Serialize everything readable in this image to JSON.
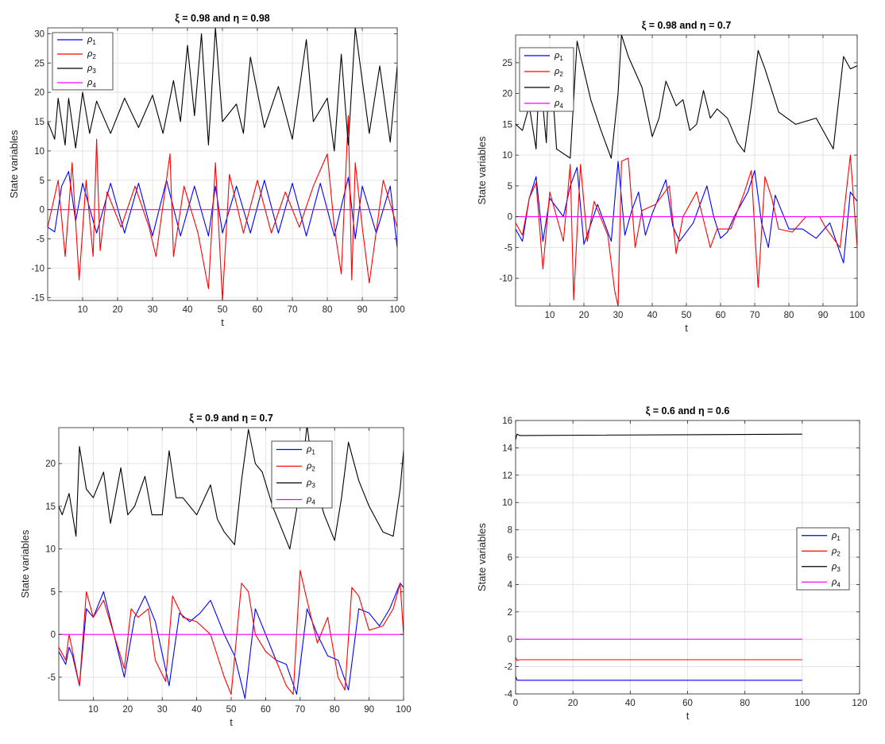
{
  "chart_data": [
    {
      "type": "line",
      "title": "ξ = 0.98 and η = 0.98",
      "xlabel": "t",
      "ylabel": "State variables",
      "xlim": [
        0,
        100
      ],
      "ylim": [
        -15.5,
        31
      ],
      "xticks": [
        10,
        20,
        30,
        40,
        50,
        60,
        70,
        80,
        90,
        100
      ],
      "yticks": [
        -15,
        -10,
        -5,
        0,
        5,
        10,
        15,
        20,
        25,
        30
      ],
      "xtick_labels": [
        "10",
        "20",
        "30",
        "40",
        "50",
        "60",
        "70",
        "80",
        "90",
        "100"
      ],
      "ytick_labels": [
        "-15",
        "-10",
        "-5",
        "0",
        "5",
        "10",
        "15",
        "20",
        "25",
        "30"
      ],
      "grid": true,
      "legend_position": "top-left",
      "series": [
        {
          "name": "ρ1",
          "legend_main": "ρ",
          "legend_sub": "1",
          "color": "#0000ff",
          "x": [
            0,
            2,
            4,
            6,
            8,
            10,
            14,
            18,
            22,
            26,
            30,
            34,
            38,
            42,
            46,
            48,
            50,
            54,
            58,
            62,
            66,
            70,
            74,
            78,
            82,
            86,
            88,
            90,
            94,
            98,
            100
          ],
          "y": [
            -3,
            -3.8,
            4,
            6.5,
            -2,
            4.5,
            -4,
            4.5,
            -4,
            4.5,
            -4.5,
            5,
            -4.5,
            4,
            -4.5,
            4,
            -4,
            4,
            -4,
            5,
            -4,
            4.5,
            -4.5,
            4.5,
            -4.5,
            5.5,
            -5,
            4,
            -4,
            4,
            -6.5
          ]
        },
        {
          "name": "ρ2",
          "legend_main": "ρ",
          "legend_sub": "2",
          "color": "#ff0000",
          "x": [
            0,
            3,
            5,
            7,
            9,
            11,
            13,
            14,
            15,
            17,
            21,
            25,
            29,
            31,
            35,
            36,
            39,
            43,
            46,
            48,
            50,
            52,
            56,
            60,
            64,
            68,
            72,
            76,
            80,
            82,
            84,
            86,
            87,
            88,
            90,
            92,
            96,
            100
          ],
          "y": [
            -3,
            5,
            -8,
            8,
            -12,
            5,
            -8,
            12,
            -7,
            3,
            -3,
            4,
            -3,
            -8,
            9.5,
            -8,
            4,
            -4,
            -13.5,
            8,
            -15.5,
            6,
            -4,
            5,
            -4,
            3,
            -3,
            4,
            9.5,
            -3,
            -11,
            16,
            -12,
            8,
            -3,
            -12.5,
            5,
            -3
          ]
        },
        {
          "name": "ρ3",
          "legend_main": "ρ",
          "legend_sub": "3",
          "color": "#000000",
          "x": [
            0,
            2,
            3,
            5,
            6,
            8,
            10,
            12,
            14,
            18,
            22,
            26,
            30,
            33,
            36,
            38,
            40,
            42,
            44,
            46,
            48,
            50,
            54,
            56,
            58,
            62,
            66,
            70,
            74,
            76,
            80,
            82,
            84,
            86,
            88,
            92,
            95,
            98,
            100
          ],
          "y": [
            15,
            12,
            19,
            11,
            19,
            10.5,
            20,
            13,
            18.5,
            13,
            19,
            14,
            19.5,
            13,
            22,
            15,
            28,
            16,
            30,
            11,
            31,
            15,
            18,
            13,
            26,
            14,
            21,
            12,
            29,
            15,
            19,
            10,
            26.5,
            11,
            31,
            13,
            24.5,
            11.5,
            24.5
          ]
        },
        {
          "name": "ρ4",
          "legend_main": "ρ",
          "legend_sub": "4",
          "color": "#ff00ff",
          "x": [
            0,
            100
          ],
          "y": [
            0,
            0
          ]
        }
      ]
    },
    {
      "type": "line",
      "title": "ξ = 0.98 and η = 0.7",
      "xlabel": "t",
      "ylabel": "State variables",
      "xlim": [
        0,
        100
      ],
      "ylim": [
        -14.5,
        29.5
      ],
      "xticks": [
        10,
        20,
        30,
        40,
        50,
        60,
        70,
        80,
        90,
        100
      ],
      "yticks": [
        -10,
        -5,
        0,
        5,
        10,
        15,
        20,
        25
      ],
      "xtick_labels": [
        "10",
        "20",
        "30",
        "40",
        "50",
        "60",
        "70",
        "80",
        "90",
        "100"
      ],
      "ytick_labels": [
        "-10",
        "-5",
        "0",
        "5",
        "10",
        "15",
        "20",
        "25"
      ],
      "grid": true,
      "legend_position": "top-left",
      "series": [
        {
          "name": "ρ1",
          "legend_main": "ρ",
          "legend_sub": "1",
          "color": "#0000ff",
          "x": [
            0,
            2,
            4,
            6,
            8,
            10,
            12,
            14,
            16,
            18,
            20,
            24,
            28,
            30,
            32,
            34,
            36,
            38,
            40,
            44,
            46,
            48,
            52,
            56,
            58,
            60,
            62,
            64,
            68,
            70,
            72,
            74,
            76,
            80,
            84,
            88,
            92,
            96,
            98,
            100
          ],
          "y": [
            -2,
            -4,
            3,
            6.5,
            -4,
            3,
            1.5,
            0,
            5,
            8,
            -4.5,
            2,
            -4,
            9,
            -3,
            1,
            4,
            -3,
            0.5,
            6,
            -1.5,
            -4,
            -1,
            5,
            0,
            -3.5,
            -2.5,
            0,
            4,
            7.5,
            -1,
            -5,
            3.5,
            -2,
            -2,
            -3.5,
            -1,
            -7.5,
            4,
            2.5
          ]
        },
        {
          "name": "ρ2",
          "legend_main": "ρ",
          "legend_sub": "2",
          "color": "#ff0000",
          "x": [
            0,
            2,
            4,
            6,
            8,
            10,
            14,
            16,
            17,
            19,
            21,
            23,
            27,
            29,
            30,
            31,
            33,
            35,
            37,
            41,
            45,
            47,
            49,
            53,
            57,
            59,
            63,
            67,
            69,
            71,
            73,
            75,
            77,
            81,
            85,
            89,
            91,
            95,
            98,
            100
          ],
          "y": [
            -1,
            -3,
            3,
            5.5,
            -8.5,
            4,
            -4,
            8.5,
            -13.5,
            8.5,
            -4,
            2.5,
            -3,
            -12,
            -14.5,
            9,
            9.5,
            -5,
            1,
            2,
            5,
            -6,
            0,
            4,
            -5,
            -2,
            -2,
            4,
            7.5,
            -11.5,
            6.5,
            3,
            -2,
            -2.5,
            0,
            0,
            -2,
            -5,
            10,
            -5
          ]
        },
        {
          "name": "ρ3",
          "legend_main": "ρ",
          "legend_sub": "3",
          "color": "#000000",
          "x": [
            0,
            2,
            4,
            6,
            7,
            9,
            10,
            12,
            16,
            18,
            22,
            25,
            28,
            30,
            31,
            33,
            37,
            40,
            42,
            44,
            47,
            49,
            51,
            53,
            55,
            57,
            59,
            62,
            65,
            67,
            69,
            71,
            73,
            77,
            82,
            85,
            88,
            93,
            96,
            98,
            100
          ],
          "y": [
            15,
            14,
            18,
            11,
            24,
            12,
            27,
            11,
            9.5,
            28.5,
            19,
            14,
            9.5,
            20,
            29.5,
            26,
            21,
            13,
            16,
            22,
            18,
            19,
            14,
            15,
            20.5,
            16,
            17.5,
            16,
            12,
            10.5,
            18,
            27,
            24,
            17,
            15,
            15.5,
            16,
            11,
            26,
            24,
            24.5
          ]
        },
        {
          "name": "ρ4",
          "legend_main": "ρ",
          "legend_sub": "4",
          "color": "#ff00ff",
          "x": [
            0,
            100
          ],
          "y": [
            0,
            0
          ]
        }
      ]
    },
    {
      "type": "line",
      "title": "ξ = 0.9 and η = 0.7",
      "xlabel": "t",
      "ylabel": "State variables",
      "xlim": [
        0,
        100
      ],
      "ylim": [
        -7.7,
        24.2
      ],
      "xticks": [
        10,
        20,
        30,
        40,
        50,
        60,
        70,
        80,
        90,
        100
      ],
      "yticks": [
        -5,
        0,
        5,
        10,
        15,
        20
      ],
      "xtick_labels": [
        "10",
        "20",
        "30",
        "40",
        "50",
        "60",
        "70",
        "80",
        "90",
        "100"
      ],
      "ytick_labels": [
        "-5",
        "0",
        "5",
        "10",
        "15",
        "20"
      ],
      "grid": true,
      "legend_position": "top-right",
      "series": [
        {
          "name": "ρ1",
          "legend_main": "ρ",
          "legend_sub": "1",
          "color": "#0000ff",
          "x": [
            0,
            2,
            3,
            4,
            6,
            8,
            10,
            13,
            16,
            19,
            22,
            25,
            28,
            32,
            35,
            38,
            41,
            44,
            48,
            51,
            54,
            57,
            60,
            63,
            66,
            69,
            72,
            75,
            78,
            81,
            84,
            87,
            90,
            93,
            96,
            99,
            100
          ],
          "y": [
            -2,
            -3.5,
            -1.5,
            -2.5,
            -6,
            3,
            2,
            5,
            0,
            -5,
            2,
            4.5,
            1.5,
            -6,
            2.5,
            1.5,
            2.5,
            4,
            0,
            -2.5,
            -7.5,
            3,
            0,
            -3,
            -3.5,
            -7,
            3,
            0,
            -2.5,
            -3,
            -6.5,
            3,
            2.5,
            1,
            3,
            6,
            5.5
          ]
        },
        {
          "name": "ρ2",
          "legend_main": "ρ",
          "legend_sub": "2",
          "color": "#ff0000",
          "x": [
            0,
            2,
            3,
            4,
            6,
            8,
            10,
            13,
            16,
            19,
            21,
            23,
            26,
            28,
            31,
            33,
            36,
            40,
            44,
            48,
            50,
            53,
            55,
            57,
            60,
            63,
            66,
            68,
            70,
            72,
            75,
            78,
            81,
            83,
            85,
            87,
            90,
            94,
            97,
            99,
            100
          ],
          "y": [
            -1.5,
            -3,
            0,
            -2,
            -6,
            5,
            2,
            4,
            0,
            -4,
            3,
            2,
            3,
            -3,
            -5.5,
            4.5,
            2,
            1.5,
            0,
            -5,
            -7,
            6,
            5,
            0,
            -2,
            -3,
            -6,
            -7,
            7.5,
            4,
            -1,
            2,
            -5,
            -6.5,
            5.5,
            4.5,
            0.5,
            1,
            3,
            6,
            0
          ]
        },
        {
          "name": "ρ3",
          "legend_main": "ρ",
          "legend_sub": "3",
          "color": "#000000",
          "x": [
            0,
            1,
            3,
            5,
            6,
            8,
            10,
            13,
            15,
            18,
            20,
            22,
            25,
            27,
            30,
            32,
            34,
            36,
            40,
            44,
            46,
            48,
            51,
            53,
            55,
            57,
            59,
            62,
            64,
            67,
            70,
            72,
            74,
            77,
            80,
            82,
            84,
            87,
            90,
            94,
            97,
            99,
            100
          ],
          "y": [
            15,
            14,
            16.5,
            11.5,
            22,
            17,
            16,
            19,
            13,
            19.5,
            14,
            15,
            18.5,
            14,
            14,
            21.5,
            16,
            16,
            14,
            17.5,
            13.5,
            12,
            10.5,
            18,
            24,
            20,
            19,
            15,
            13,
            10,
            17,
            24.5,
            18,
            14,
            11,
            16,
            22.5,
            18,
            15,
            12,
            11.5,
            17,
            21.5
          ]
        },
        {
          "name": "ρ4",
          "legend_main": "ρ",
          "legend_sub": "4",
          "color": "#ff00ff",
          "x": [
            0,
            100
          ],
          "y": [
            0,
            0
          ]
        }
      ]
    },
    {
      "type": "line",
      "title": "ξ = 0.6 and η = 0.6",
      "xlabel": "t",
      "ylabel": "State variables",
      "xlim": [
        0,
        120
      ],
      "ylim": [
        -4,
        16
      ],
      "xticks": [
        0,
        20,
        40,
        60,
        80,
        100,
        120
      ],
      "yticks": [
        -4,
        -2,
        0,
        2,
        4,
        6,
        8,
        10,
        12,
        14,
        16
      ],
      "xtick_labels": [
        "0",
        "20",
        "40",
        "60",
        "80",
        "100",
        "120"
      ],
      "ytick_labels": [
        "-4",
        "-2",
        "0",
        "2",
        "4",
        "6",
        "8",
        "10",
        "12",
        "14",
        "16"
      ],
      "grid": true,
      "legend_position": "right",
      "series": [
        {
          "name": "ρ1",
          "legend_main": "ρ",
          "legend_sub": "1",
          "color": "#0000ff",
          "x": [
            0,
            0.5,
            1.5,
            100
          ],
          "y": [
            -2.7,
            -3.0,
            -3.0,
            -3.0
          ]
        },
        {
          "name": "ρ2",
          "legend_main": "ρ",
          "legend_sub": "2",
          "color": "#ff0000",
          "x": [
            0,
            0.5,
            1.5,
            100
          ],
          "y": [
            -1.3,
            -1.55,
            -1.5,
            -1.5
          ]
        },
        {
          "name": "ρ3",
          "legend_main": "ρ",
          "legend_sub": "3",
          "color": "#000000",
          "x": [
            0,
            0.5,
            1.5,
            100
          ],
          "y": [
            14.6,
            15.0,
            14.9,
            15.0
          ]
        },
        {
          "name": "ρ4",
          "legend_main": "ρ",
          "legend_sub": "4",
          "color": "#ff00ff",
          "x": [
            0,
            100
          ],
          "y": [
            0,
            0
          ]
        }
      ]
    }
  ]
}
